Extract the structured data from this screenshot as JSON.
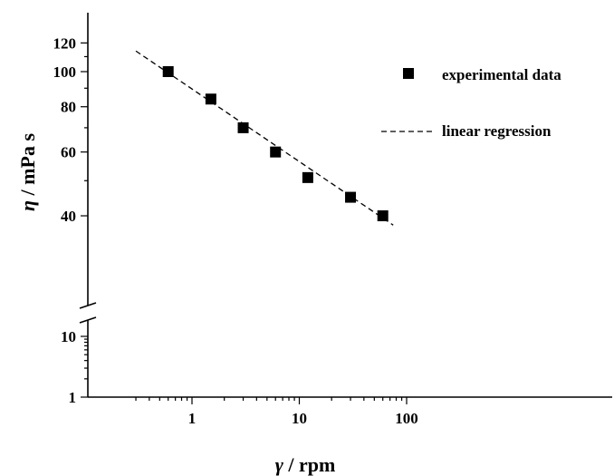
{
  "chart_data": {
    "type": "scatter",
    "xscale": "log",
    "yscale": "log",
    "xlim": [
      0.3,
      120
    ],
    "y_upper_segment_range": [
      36,
      125
    ],
    "y_lower_segment_range": [
      1,
      12
    ],
    "axis_break": "y",
    "x_ticks": [
      "1",
      "10",
      "100"
    ],
    "y_ticks_upper": [
      "120",
      "100",
      "80",
      "60",
      "40"
    ],
    "y_ticks_lower": [
      "10",
      "1"
    ],
    "xlabel_symbol": "γ",
    "xlabel_unit": "/ rpm",
    "ylabel_symbol": "η",
    "ylabel_unit": "/ mPa s",
    "legend_position": "top-right",
    "grid": false,
    "series": [
      {
        "name": "experimental data",
        "marker": "square",
        "color": "#000000",
        "x": [
          0.6,
          1.5,
          3,
          6,
          12,
          30,
          60
        ],
        "y": [
          100,
          84,
          70,
          60,
          51,
          45,
          40
        ]
      },
      {
        "name": "linear regression",
        "style": "dashed",
        "color": "#000000",
        "x": [
          0.3,
          75
        ],
        "y": [
          114,
          37.7
        ]
      }
    ]
  }
}
